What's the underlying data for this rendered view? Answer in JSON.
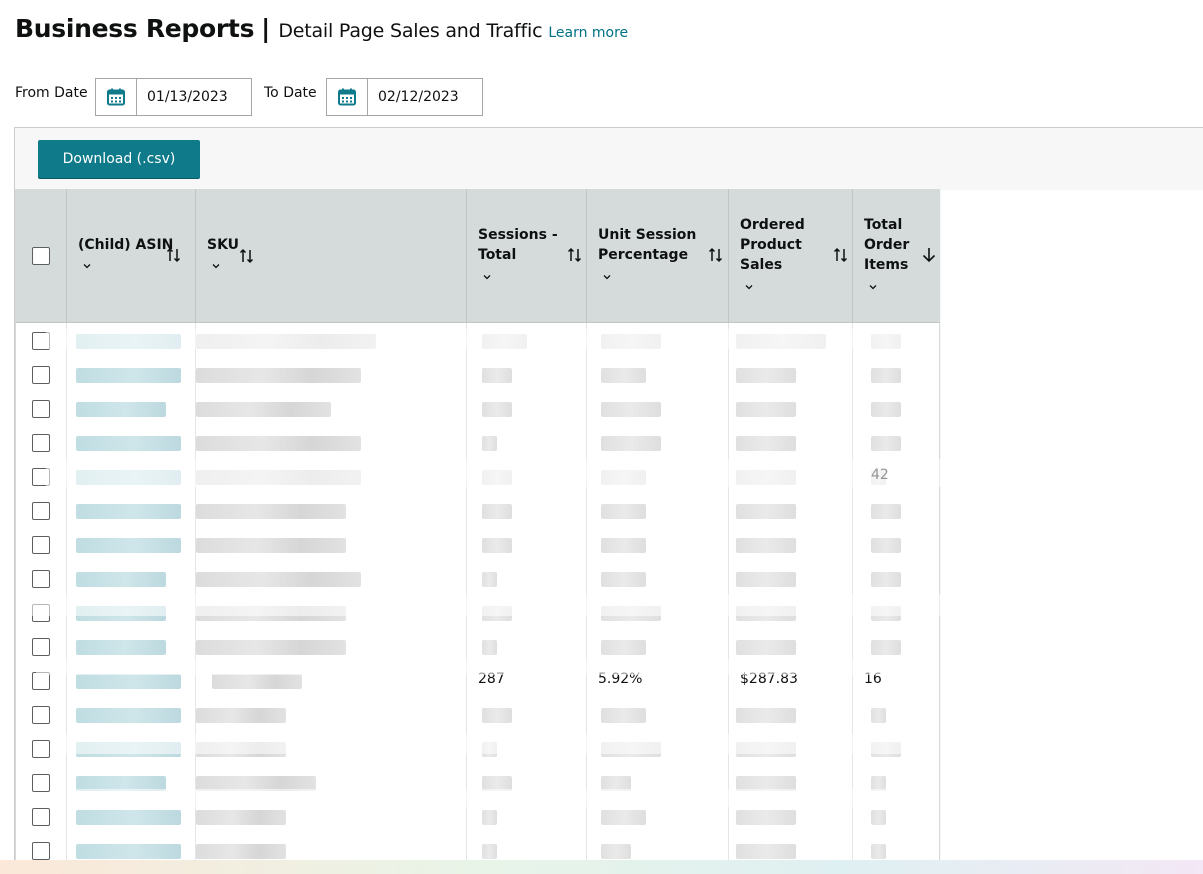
{
  "header": {
    "title": "Business Reports",
    "separator": "|",
    "subtitle": "Detail Page Sales and Traffic",
    "learn_more": "Learn more"
  },
  "filters": {
    "from_label": "From Date",
    "from_value": "01/13/2023",
    "to_label": "To Date",
    "to_value": "02/12/2023",
    "calendar_icon": "calendar-icon"
  },
  "toolbar": {
    "download_label": "Download (.csv)"
  },
  "table": {
    "columns": [
      {
        "key": "asin",
        "label": "(Child) ASIN",
        "sort_icon": "sort-both-icon",
        "has_menu": true
      },
      {
        "key": "sku",
        "label": "SKU",
        "sort_icon": "sort-both-icon",
        "has_menu": true
      },
      {
        "key": "sessions",
        "label": "Sessions -\nTotal",
        "sort_icon": "sort-both-icon",
        "has_menu": true
      },
      {
        "key": "usp",
        "label": "Unit Session\nPercentage",
        "sort_icon": "sort-both-icon",
        "has_menu": true
      },
      {
        "key": "sales",
        "label": "Ordered\nProduct\nSales",
        "sort_icon": "sort-both-icon",
        "has_menu": true
      },
      {
        "key": "items",
        "label": "Total\nOrder\nItems",
        "sort_icon": "sort-desc-icon",
        "has_menu": true
      }
    ],
    "visible_row": {
      "sessions": "287",
      "usp": "5.92%",
      "sales": "$287.83",
      "items": "16"
    },
    "partial_values": {
      "row5_items": "42",
      "row11_sku": "…ks"
    },
    "row_count": 16
  },
  "colors": {
    "accent": "#0f7a8a",
    "link": "#007185",
    "header_bg": "#d5dbdb"
  }
}
